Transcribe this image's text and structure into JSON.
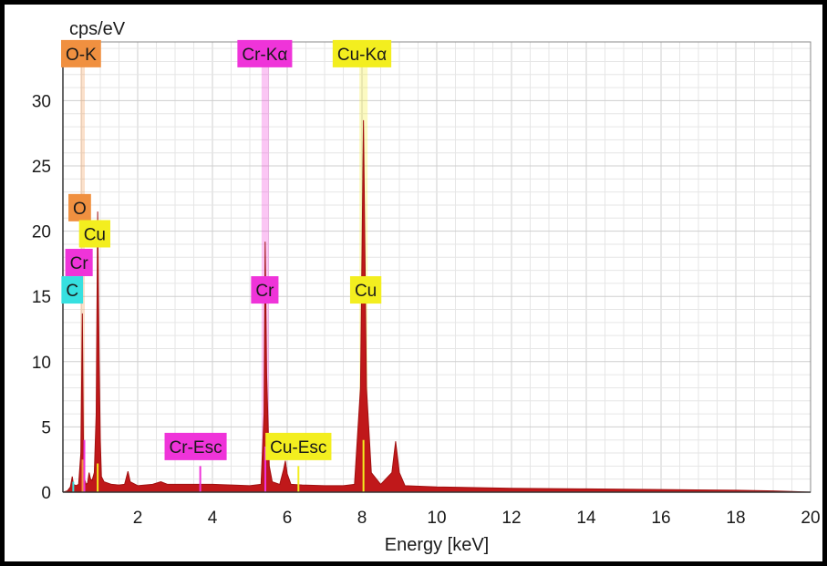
{
  "chart_data": {
    "type": "line",
    "ylabel": "cps/eV",
    "xlabel": "Energy [keV]",
    "xlim": [
      0,
      20
    ],
    "ylim": [
      0,
      34.5
    ],
    "x_ticks": [
      2,
      4,
      6,
      8,
      10,
      12,
      14,
      16,
      18,
      20
    ],
    "y_ticks": [
      0,
      5,
      10,
      15,
      20,
      25,
      30
    ],
    "grid": true,
    "spectrum_color": "#c0181a",
    "spectrum": [
      [
        0.0,
        0.0
      ],
      [
        0.12,
        0.1
      ],
      [
        0.2,
        0.4
      ],
      [
        0.25,
        1.2
      ],
      [
        0.28,
        0.6
      ],
      [
        0.35,
        0.5
      ],
      [
        0.42,
        0.6
      ],
      [
        0.48,
        3.0
      ],
      [
        0.52,
        13.7
      ],
      [
        0.55,
        3.5
      ],
      [
        0.58,
        1.0
      ],
      [
        0.62,
        0.6
      ],
      [
        0.66,
        0.7
      ],
      [
        0.7,
        1.5
      ],
      [
        0.74,
        1.0
      ],
      [
        0.78,
        0.9
      ],
      [
        0.84,
        1.5
      ],
      [
        0.89,
        6.0
      ],
      [
        0.93,
        21.5
      ],
      [
        0.97,
        10.0
      ],
      [
        1.0,
        4.0
      ],
      [
        1.03,
        1.2
      ],
      [
        1.1,
        0.8
      ],
      [
        1.3,
        0.6
      ],
      [
        1.5,
        0.55
      ],
      [
        1.65,
        0.6
      ],
      [
        1.74,
        1.6
      ],
      [
        1.8,
        0.8
      ],
      [
        2.0,
        0.5
      ],
      [
        2.4,
        0.6
      ],
      [
        2.62,
        0.8
      ],
      [
        2.8,
        0.6
      ],
      [
        3.2,
        0.6
      ],
      [
        3.6,
        0.6
      ],
      [
        4.0,
        0.6
      ],
      [
        4.5,
        0.55
      ],
      [
        5.0,
        0.5
      ],
      [
        5.3,
        0.6
      ],
      [
        5.38,
        6.0
      ],
      [
        5.41,
        19.2
      ],
      [
        5.45,
        9.0
      ],
      [
        5.52,
        2.0
      ],
      [
        5.6,
        0.8
      ],
      [
        5.8,
        0.6
      ],
      [
        5.9,
        1.7
      ],
      [
        5.95,
        2.4
      ],
      [
        6.0,
        1.4
      ],
      [
        6.1,
        0.6
      ],
      [
        6.4,
        0.55
      ],
      [
        7.0,
        0.5
      ],
      [
        7.5,
        0.5
      ],
      [
        7.8,
        0.6
      ],
      [
        7.96,
        8.0
      ],
      [
        8.04,
        28.5
      ],
      [
        8.12,
        8.0
      ],
      [
        8.25,
        1.5
      ],
      [
        8.5,
        0.6
      ],
      [
        8.8,
        1.5
      ],
      [
        8.9,
        3.9
      ],
      [
        9.0,
        1.5
      ],
      [
        9.15,
        0.5
      ],
      [
        10.0,
        0.4
      ],
      [
        12.0,
        0.3
      ],
      [
        14.0,
        0.25
      ],
      [
        16.0,
        0.2
      ],
      [
        18.0,
        0.15
      ],
      [
        19.0,
        0.1
      ],
      [
        19.5,
        0.05
      ],
      [
        20.0,
        0.0
      ]
    ],
    "lines": [
      {
        "element": "C",
        "energy": 0.277,
        "height": 0.8,
        "color": "#36e0e0",
        "label": "C"
      },
      {
        "element": "O",
        "energy": 0.525,
        "height": 2.5,
        "color": "#f09040",
        "label": "O"
      },
      {
        "element": "Cr",
        "energy": 0.573,
        "height": 4.0,
        "color": "#ef34d9",
        "label": "Cr"
      },
      {
        "element": "Cu",
        "energy": 0.93,
        "height": 2.2,
        "color": "#f3ee1f",
        "label": "Cu"
      },
      {
        "element": "Cr",
        "energy": 5.414,
        "height": 3.5,
        "color": "#ef34d9",
        "label": "Cr"
      },
      {
        "element": "Cr-Esc",
        "energy": 3.674,
        "height": 2.0,
        "color": "#ef34d9",
        "label": "Cr-Esc"
      },
      {
        "element": "Cu",
        "energy": 8.04,
        "height": 4.0,
        "color": "#f3ee1f",
        "label": "Cu"
      },
      {
        "element": "Cu-Esc",
        "energy": 6.3,
        "height": 2.0,
        "color": "#f3ee1f",
        "label": "Cu-Esc"
      }
    ],
    "bands": [
      {
        "label": "O-K",
        "energy": 0.525,
        "color": "#f09040",
        "width_keV": 0.12
      },
      {
        "label": "Cr-Kα",
        "energy": 5.414,
        "color": "#ef34d9",
        "width_keV": 0.2
      },
      {
        "label": "Cu-Kα",
        "energy": 8.04,
        "color": "#f3ee1f",
        "width_keV": 0.22
      }
    ],
    "labels": [
      {
        "text": "O-K",
        "color": "#f09040",
        "energy": 0.48,
        "y": 33.6
      },
      {
        "text": "Cr-Kα",
        "color": "#ef34d9",
        "energy": 5.4,
        "y": 33.6
      },
      {
        "text": "Cu-Kα",
        "color": "#f3ee1f",
        "energy": 8.0,
        "y": 33.6
      },
      {
        "text": "O",
        "color": "#f09040",
        "energy": 0.45,
        "y": 21.8
      },
      {
        "text": "Cu",
        "color": "#f3ee1f",
        "energy": 0.85,
        "y": 19.8
      },
      {
        "text": "Cr",
        "color": "#ef34d9",
        "energy": 0.43,
        "y": 17.6
      },
      {
        "text": "C",
        "color": "#36e0e0",
        "energy": 0.25,
        "y": 15.5
      },
      {
        "text": "Cr",
        "color": "#ef34d9",
        "energy": 5.4,
        "y": 15.5
      },
      {
        "text": "Cu",
        "color": "#f3ee1f",
        "energy": 8.1,
        "y": 15.5
      },
      {
        "text": "Cr-Esc",
        "color": "#ef34d9",
        "energy": 3.55,
        "y": 3.5
      },
      {
        "text": "Cu-Esc",
        "color": "#f3ee1f",
        "energy": 6.3,
        "y": 3.5
      }
    ]
  }
}
